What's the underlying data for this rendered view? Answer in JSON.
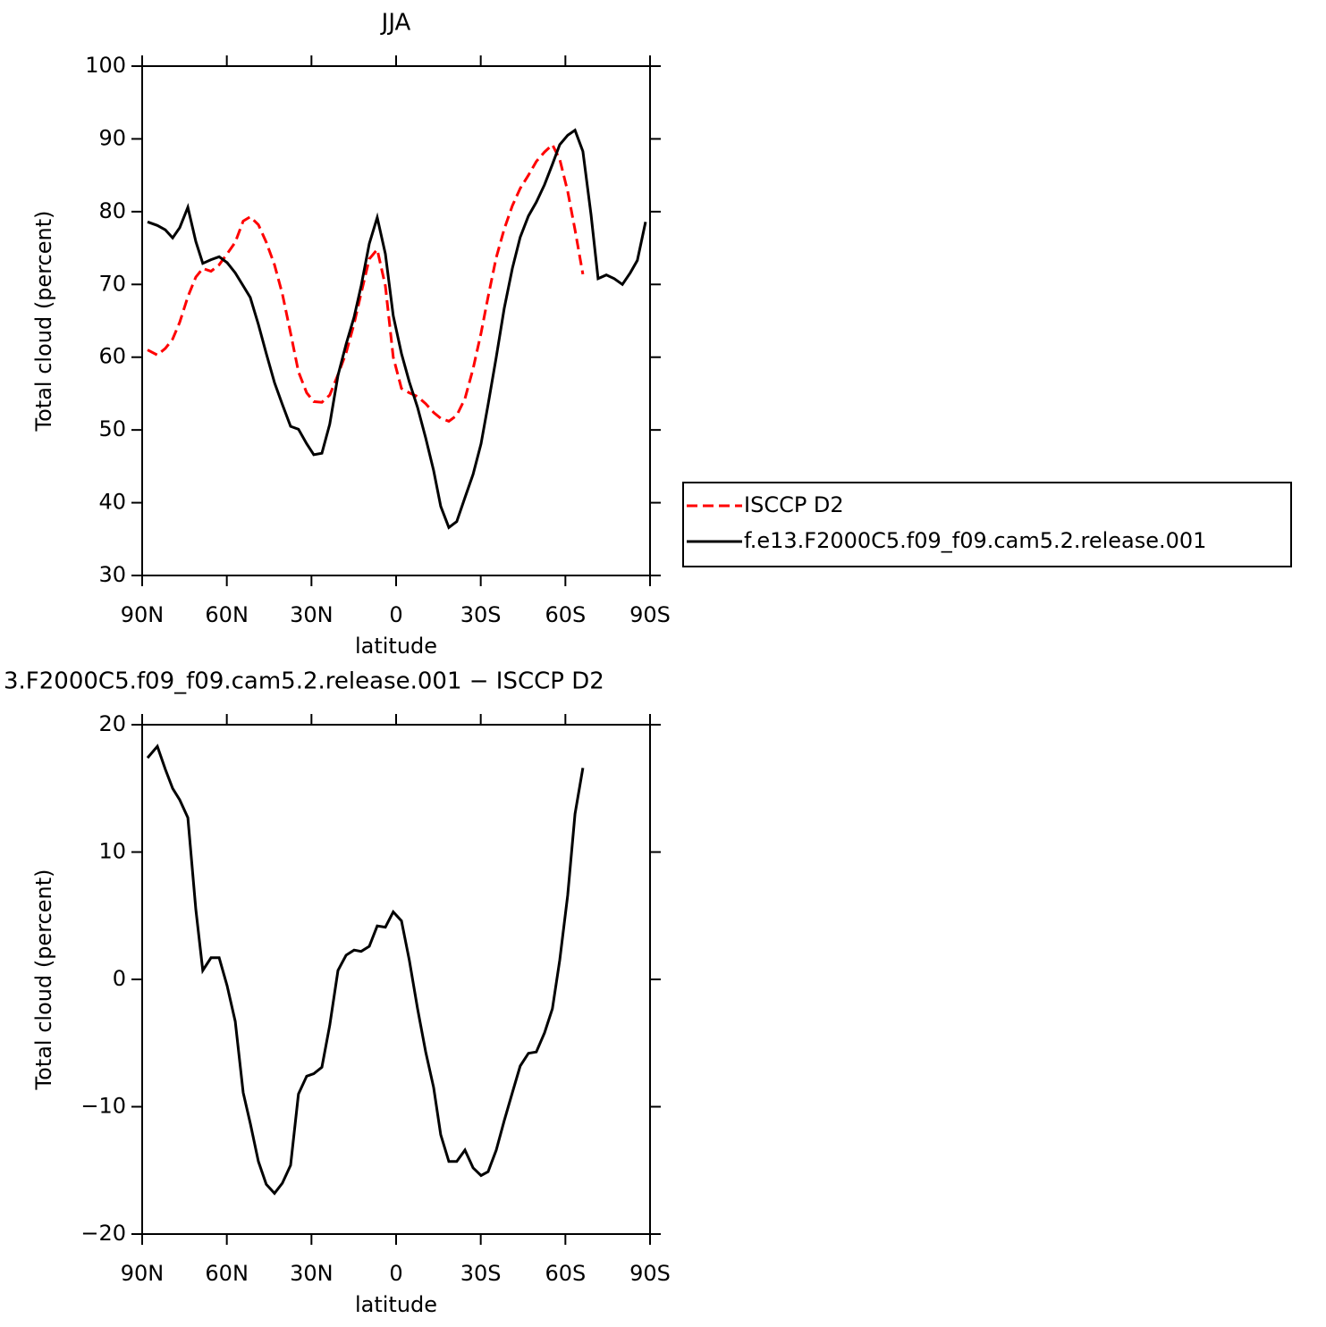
{
  "chart_data": [
    {
      "type": "line",
      "title": "JJA",
      "xlabel": "latitude",
      "ylabel": "Total cloud (percent)",
      "x": [
        88.1,
        84.6,
        81.8,
        79.2,
        76.7,
        73.8,
        71.0,
        68.5,
        65.6,
        62.7,
        59.9,
        57.0,
        54.2,
        51.7,
        48.8,
        46.0,
        43.1,
        40.3,
        37.4,
        34.6,
        31.7,
        29.2,
        26.3,
        23.5,
        20.6,
        17.7,
        14.9,
        12.4,
        9.5,
        6.7,
        3.8,
        1.0,
        -1.9,
        -4.7,
        -7.6,
        -10.5,
        -13.3,
        -15.8,
        -18.7,
        -21.5,
        -24.4,
        -27.3,
        -30.1,
        -32.6,
        -35.5,
        -38.3,
        -41.2,
        -44.0,
        -46.9,
        -49.7,
        -52.6,
        -55.4,
        -58.0,
        -60.8,
        -63.4,
        -66.2,
        -69.1,
        -71.6,
        -74.5,
        -77.3,
        -80.2,
        -83.0,
        -85.5,
        -88.4
      ],
      "series": [
        {
          "name": "ISCCP D2",
          "color": "#ff0000",
          "dash": true,
          "values": [
            61.0,
            60.3,
            61.2,
            62.5,
            64.8,
            68.3,
            71.0,
            72.2,
            71.8,
            72.7,
            74.2,
            75.8,
            78.7,
            79.3,
            78.2,
            75.8,
            72.7,
            68.7,
            63.3,
            58.0,
            55.1,
            53.9,
            53.8,
            54.8,
            57.6,
            60.6,
            64.6,
            68.8,
            73.5,
            74.8,
            69.8,
            60.0,
            55.7,
            55.1,
            54.6,
            53.6,
            52.4,
            51.6,
            51.2,
            52.0,
            54.3,
            58.4,
            63.3,
            68.3,
            73.7,
            77.6,
            80.8,
            83.2,
            85.0,
            86.9,
            88.2,
            89.2,
            87.2,
            82.8,
            77.5,
            71.4,
            null,
            null,
            null,
            null,
            null,
            null,
            null,
            null
          ]
        },
        {
          "name": "f.e13.F2000C5.f09_f09.cam5.2.release.001",
          "color": "#000000",
          "dash": false,
          "values": [
            78.6,
            78.1,
            77.5,
            76.4,
            77.8,
            80.6,
            75.9,
            72.9,
            73.4,
            73.8,
            73.0,
            71.6,
            69.8,
            68.2,
            64.5,
            60.5,
            56.5,
            53.5,
            50.5,
            50.1,
            48.1,
            46.6,
            46.8,
            50.8,
            57.5,
            61.8,
            65.5,
            69.8,
            75.6,
            79.2,
            74.2,
            65.7,
            60.5,
            56.6,
            53.1,
            48.9,
            44.4,
            39.5,
            36.6,
            37.4,
            40.7,
            43.9,
            48.1,
            53.5,
            60.0,
            66.7,
            72.2,
            76.5,
            79.4,
            81.3,
            83.7,
            86.5,
            89.2,
            90.5,
            91.2,
            88.3,
            79.6,
            70.8,
            71.3,
            70.8,
            70.0,
            71.6,
            73.3,
            78.6
          ]
        }
      ],
      "xlim": [
        90,
        -90
      ],
      "xticks": [
        {
          "value": 90,
          "label": "90N"
        },
        {
          "value": 60,
          "label": "60N"
        },
        {
          "value": 30,
          "label": "30N"
        },
        0,
        {
          "value": -30,
          "label": "30S"
        },
        {
          "value": -60,
          "label": "60S"
        },
        {
          "value": -90,
          "label": "90S"
        }
      ],
      "ylim": [
        30,
        100
      ],
      "yticks": [
        30,
        40,
        50,
        60,
        70,
        80,
        90,
        100
      ],
      "legend": "right"
    },
    {
      "type": "line",
      "title": "3.F2000C5.f09_f09.cam5.2.release.001 − ISCCP D2",
      "xlabel": "latitude",
      "ylabel": "Total cloud (percent)",
      "x": [
        88.1,
        84.6,
        81.8,
        79.2,
        76.7,
        73.8,
        71.0,
        68.5,
        65.6,
        62.7,
        59.9,
        57.0,
        54.2,
        51.7,
        48.8,
        46.0,
        43.1,
        40.3,
        37.4,
        34.6,
        31.7,
        29.2,
        26.3,
        23.5,
        20.6,
        17.7,
        14.9,
        12.4,
        9.5,
        6.7,
        3.8,
        1.0,
        -1.9,
        -4.7,
        -7.6,
        -10.5,
        -13.3,
        -15.8,
        -18.7,
        -21.5,
        -24.4,
        -27.3,
        -30.1,
        -32.6,
        -35.5,
        -38.3,
        -41.2,
        -44.0,
        -46.9,
        -49.7,
        -52.6,
        -55.4,
        -58.0,
        -60.8,
        -63.4,
        -66.2
      ],
      "series": [
        {
          "color": "#000000",
          "dash": false,
          "values": [
            17.4,
            18.3,
            16.5,
            15.0,
            14.1,
            12.7,
            5.5,
            0.7,
            1.7,
            1.7,
            -0.5,
            -3.3,
            -8.9,
            -11.3,
            -14.3,
            -16.1,
            -16.8,
            -16.0,
            -14.6,
            -9.0,
            -7.6,
            -7.4,
            -6.9,
            -3.6,
            0.7,
            1.9,
            2.3,
            2.2,
            2.6,
            4.2,
            4.1,
            5.3,
            4.6,
            1.5,
            -2.3,
            -5.7,
            -8.5,
            -12.2,
            -14.3,
            -14.3,
            -13.4,
            -14.8,
            -15.4,
            -15.1,
            -13.4,
            -11.1,
            -8.9,
            -6.8,
            -5.8,
            -5.7,
            -4.2,
            -2.3,
            1.5,
            6.6,
            13.0,
            16.6
          ]
        }
      ],
      "xlim": [
        90,
        -90
      ],
      "xticks": [
        {
          "value": 90,
          "label": "90N"
        },
        {
          "value": 60,
          "label": "60N"
        },
        {
          "value": 30,
          "label": "30N"
        },
        0,
        {
          "value": -30,
          "label": "30S"
        },
        {
          "value": -60,
          "label": "60S"
        },
        {
          "value": -90,
          "label": "90S"
        }
      ],
      "ylim": [
        -20,
        20
      ],
      "yticks": [
        {
          "value": -20,
          "label": "−20"
        },
        {
          "value": -10,
          "label": "−10"
        },
        0,
        10,
        20
      ]
    }
  ]
}
